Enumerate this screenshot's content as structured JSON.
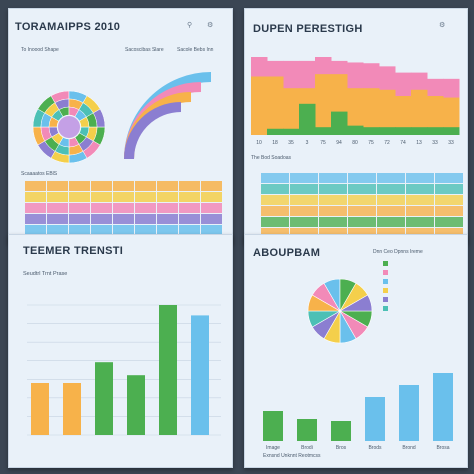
{
  "panels": [
    {
      "title": "TORAMAIPPS 2010",
      "subtitle_a": "To Inoood Shape",
      "subtitle_b": "Sacoscibas Slare",
      "subtitle_c": "Sacole Bebs Inn",
      "table_label": "Scaaaatos EBlS",
      "table_rows": 6,
      "table_cols": 9
    },
    {
      "title": "DUPEN PERESTIGH",
      "legend_label": "The Bod Soadoas"
    },
    {
      "title": "TEEMER TRENSTI",
      "subtitle": "Seudtrl Trnt Prase"
    },
    {
      "title": "ABOUPBAM",
      "legend_hdr": "Dnn Ceo Dpnns Ireme",
      "footer": "Exnsnd Unknnt Reotmcss"
    }
  ],
  "colors": {
    "green": "#4caf50",
    "orange": "#f7b24a",
    "pink": "#f28ab8",
    "blue": "#6ac0ec",
    "purple": "#8b7ed1",
    "teal": "#4cc0b5",
    "yellow": "#f4cf4b"
  },
  "chart_data": [
    {
      "type": "area",
      "panel": "p2",
      "series": [
        {
          "name": "",
          "color": "#f28ab8",
          "values": [
            100,
            95,
            95,
            95,
            100,
            95,
            93,
            92,
            88,
            80,
            80,
            72,
            72
          ]
        },
        {
          "name": "",
          "color": "#f7b24a",
          "values": [
            75,
            75,
            60,
            60,
            78,
            78,
            60,
            60,
            58,
            50,
            58,
            50,
            48
          ]
        },
        {
          "name": "",
          "color": "#4caf50",
          "values": [
            0,
            8,
            8,
            40,
            10,
            30,
            12,
            10,
            10,
            10,
            10,
            10,
            10
          ]
        }
      ],
      "categories": [
        "10",
        "18",
        "35",
        "3",
        "75",
        "94",
        "80",
        "75",
        "72",
        "74",
        "13",
        "33",
        "33"
      ]
    },
    {
      "type": "bar",
      "panel": "p3",
      "categories": [
        "",
        "",
        "",
        "",
        "",
        ""
      ],
      "values": [
        40,
        40,
        56,
        46,
        100,
        92
      ],
      "colors": [
        "#f7b24a",
        "#f7b24a",
        "#4caf50",
        "#4caf50",
        "#4caf50",
        "#6ac0ec"
      ],
      "ylim": [
        0,
        100
      ]
    },
    {
      "type": "bar",
      "panel": "p4",
      "categories": [
        "Image",
        "Brodi",
        "Bros",
        "Brods",
        "Brond",
        "Brosa"
      ],
      "values": [
        30,
        22,
        20,
        44,
        56,
        68
      ],
      "colors": [
        "#4caf50",
        "#4caf50",
        "#4caf50",
        "#6ac0ec",
        "#6ac0ec",
        "#6ac0ec"
      ],
      "ylim": [
        0,
        100
      ]
    },
    {
      "type": "pie",
      "panel": "p4",
      "values": [
        1,
        1,
        1,
        1,
        1,
        1,
        1,
        1,
        1,
        1,
        1,
        1
      ],
      "colors": [
        "#4caf50",
        "#f28ab8",
        "#6ac0ec",
        "#f4cf4b",
        "#8b7ed1",
        "#4cc0b5",
        "#f7b24a",
        "#f28ab8",
        "#6ac0ec",
        "#4caf50",
        "#f4cf4b",
        "#8b7ed1"
      ]
    }
  ]
}
